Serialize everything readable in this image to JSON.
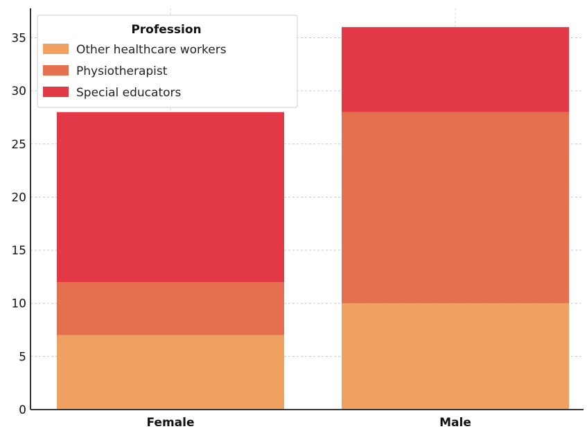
{
  "chart_data": {
    "type": "bar",
    "stacked": true,
    "categories": [
      "Female",
      "Male"
    ],
    "series": [
      {
        "name": "Other healthcare workers",
        "values": [
          7,
          10
        ],
        "color": "#f0a060"
      },
      {
        "name": "Physiotherapist",
        "values": [
          5,
          18
        ],
        "color": "#e57050"
      },
      {
        "name": "Special educators",
        "values": [
          16,
          8
        ],
        "color": "#e33845"
      }
    ],
    "title": "",
    "xlabel": "",
    "ylabel": "",
    "ylim": [
      0,
      37
    ],
    "yticks": [
      0,
      5,
      10,
      15,
      20,
      25,
      30,
      35
    ],
    "grid": true,
    "legend": {
      "title": "Profession",
      "placement": "top-left"
    }
  }
}
